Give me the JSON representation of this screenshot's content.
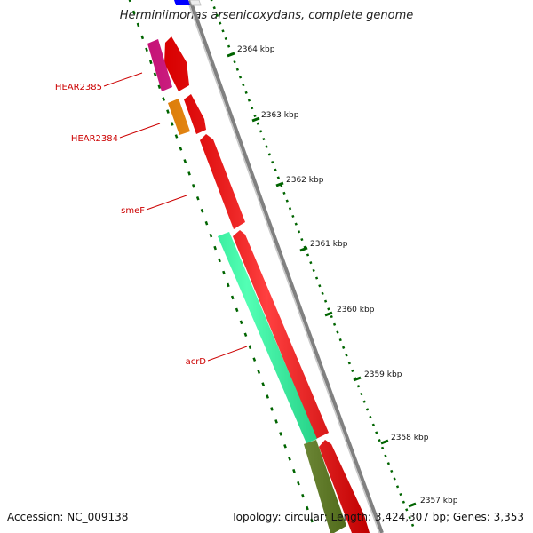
{
  "title": "Herminiimonas arsenicoxydans, complete genome",
  "footer": {
    "accession": "Accession: NC_009138",
    "topology": "Topology: circular; Length: 3,424,307 bp; Genes: 3,353"
  },
  "ticks": [
    "2364 kbp",
    "2363 kbp",
    "2362 kbp",
    "2361 kbp",
    "2360 kbp",
    "2359 kbp",
    "2358 kbp",
    "2357 kbp"
  ],
  "gene_labels": [
    "HEAR2385",
    "HEAR2384",
    "smeF",
    "acrD"
  ],
  "colors": {
    "backbone": "#808080",
    "forward_strand": "#ff0000",
    "gene_pink": "#e8168c",
    "gene_orange": "#ff8c00",
    "gene_teal": "#1aff9c",
    "gene_olive": "#6b8e23",
    "gene_blue": "#0000ff",
    "tick": "#006400",
    "label": "#cc0000"
  }
}
